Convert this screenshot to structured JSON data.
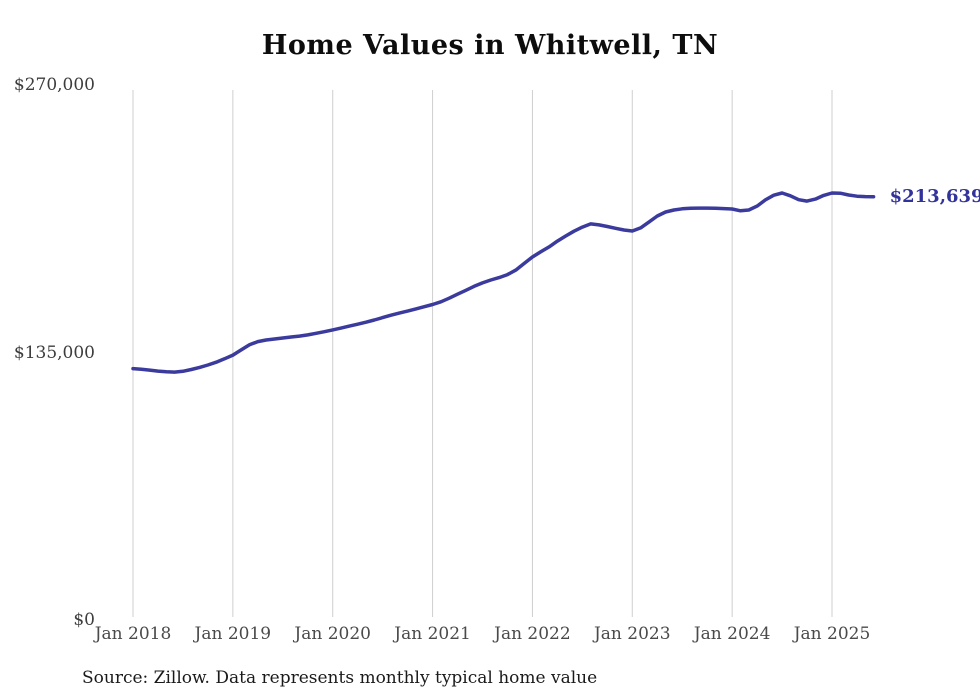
{
  "chart": {
    "title": "Home Values in Whitwell, TN",
    "source_note": "Source: Zillow. Data represents monthly typical home value",
    "end_label": "$213,639",
    "colors": {
      "line": "#3b3b9e",
      "end_label": "#32329b",
      "grid": "#cfcfcf",
      "axis_text": "#3d3d3d",
      "title_text": "#0d0d0d"
    }
  },
  "chart_data": {
    "type": "line",
    "title": "Home Values in Whitwell, TN",
    "xlabel": "",
    "ylabel": "",
    "ylim": [
      0,
      270000
    ],
    "y_ticks": [
      0,
      135000,
      270000
    ],
    "y_tick_labels": [
      "$0",
      "$135,000",
      "$270,000"
    ],
    "x_tick_labels": [
      "Jan 2018",
      "Jan 2019",
      "Jan 2020",
      "Jan 2021",
      "Jan 2022",
      "Jan 2023",
      "Jan 2024",
      "Jan 2025"
    ],
    "frequency": "monthly",
    "start_month": "2018-01",
    "end_month": "2025-06",
    "grid": "vertical-year-lines-only",
    "legend": "none",
    "last_value": 213639,
    "last_value_label": "$213,639",
    "series": [
      {
        "name": "Typical home value",
        "values": [
          126900,
          126500,
          126100,
          125600,
          125300,
          125100,
          125500,
          126400,
          127500,
          128700,
          130100,
          131800,
          133700,
          136300,
          138900,
          140500,
          141300,
          141800,
          142300,
          142800,
          143300,
          143900,
          144700,
          145500,
          146400,
          147300,
          148300,
          149300,
          150300,
          151400,
          152600,
          153800,
          154900,
          155900,
          157000,
          158100,
          159200,
          160600,
          162400,
          164400,
          166400,
          168400,
          170100,
          171600,
          172800,
          174300,
          176600,
          179900,
          183200,
          185800,
          188300,
          191200,
          193800,
          196200,
          198300,
          199900,
          199400,
          198600,
          197700,
          196800,
          196300,
          197900,
          200800,
          203900,
          205900,
          206900,
          207500,
          207800,
          207900,
          207900,
          207800,
          207600,
          207400,
          206500,
          206900,
          208900,
          212000,
          214400,
          215500,
          214100,
          212100,
          211400,
          212400,
          214300,
          215500,
          215400,
          214500,
          213900,
          213700,
          213639
        ]
      }
    ]
  }
}
